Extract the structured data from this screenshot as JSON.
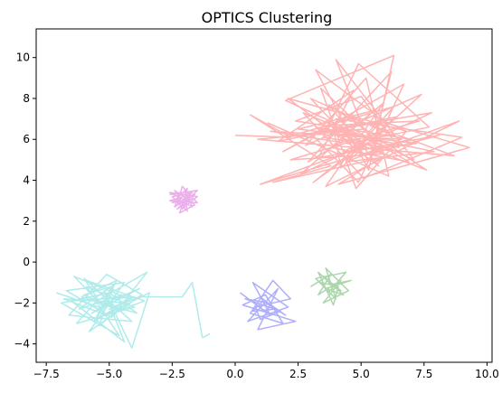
{
  "chart_data": {
    "type": "line",
    "title": "OPTICS Clustering",
    "xlabel": "",
    "ylabel": "",
    "xlim": [
      -7.9,
      10.2
    ],
    "ylim": [
      -4.9,
      11.4
    ],
    "x_ticks": [
      -7.5,
      -5.0,
      -2.5,
      0.0,
      2.5,
      5.0,
      7.5,
      10.0
    ],
    "x_tick_labels": [
      "−7.5",
      "−5.0",
      "−2.5",
      "0.0",
      "2.5",
      "5.0",
      "7.5",
      "10.0"
    ],
    "y_ticks": [
      -4,
      -2,
      0,
      2,
      4,
      6,
      8,
      10
    ],
    "y_tick_labels": [
      "−4",
      "−2",
      "0",
      "2",
      "4",
      "6",
      "8",
      "10"
    ],
    "grid": false,
    "series": [
      {
        "color": "#ffb3b3",
        "points": [
          [
            0.0,
            6.2
          ],
          [
            2.2,
            6.1
          ],
          [
            0.6,
            7.2
          ],
          [
            3.8,
            4.7
          ],
          [
            1.5,
            3.9
          ],
          [
            5.8,
            5.1
          ],
          [
            4.1,
            3.8
          ],
          [
            9.3,
            5.6
          ],
          [
            6.0,
            6.8
          ],
          [
            3.2,
            9.4
          ],
          [
            5.3,
            4.5
          ],
          [
            6.3,
            10.1
          ],
          [
            2.0,
            7.9
          ],
          [
            7.1,
            5.0
          ],
          [
            4.0,
            9.9
          ],
          [
            5.1,
            6.5
          ],
          [
            0.9,
            6.0
          ],
          [
            8.7,
            5.2
          ],
          [
            4.5,
            7.1
          ],
          [
            1.9,
            5.4
          ],
          [
            6.7,
            8.7
          ],
          [
            4.9,
            3.9
          ],
          [
            3.0,
            6.3
          ],
          [
            7.8,
            7.3
          ],
          [
            2.6,
            4.3
          ],
          [
            5.9,
            7.8
          ],
          [
            3.6,
            3.7
          ],
          [
            8.9,
            6.9
          ],
          [
            4.6,
            5.0
          ],
          [
            1.3,
            6.8
          ],
          [
            6.1,
            4.2
          ],
          [
            5.2,
            9.0
          ],
          [
            2.8,
            5.7
          ],
          [
            7.4,
            8.2
          ],
          [
            4.2,
            4.6
          ],
          [
            3.9,
            6.6
          ],
          [
            6.5,
            5.6
          ],
          [
            5.0,
            8.1
          ],
          [
            2.4,
            6.9
          ],
          [
            7.0,
            6.0
          ],
          [
            1.0,
            3.8
          ],
          [
            5.6,
            5.9
          ],
          [
            3.4,
            8.5
          ],
          [
            4.8,
            3.6
          ],
          [
            6.8,
            6.4
          ],
          [
            2.1,
            8.0
          ],
          [
            5.7,
            4.7
          ],
          [
            3.7,
            7.7
          ],
          [
            7.6,
            4.5
          ],
          [
            4.4,
            6.0
          ],
          [
            2.9,
            4.9
          ],
          [
            6.2,
            9.3
          ],
          [
            5.4,
            5.3
          ],
          [
            8.1,
            6.2
          ],
          [
            3.3,
            5.1
          ],
          [
            4.7,
            8.4
          ],
          [
            1.7,
            5.9
          ],
          [
            6.4,
            7.1
          ],
          [
            3.1,
            3.9
          ],
          [
            5.8,
            6.3
          ],
          [
            4.3,
            5.4
          ],
          [
            7.2,
            5.8
          ],
          [
            2.5,
            6.5
          ],
          [
            5.5,
            7.4
          ],
          [
            3.8,
            5.6
          ],
          [
            6.9,
            4.9
          ],
          [
            4.0,
            7.0
          ],
          [
            9.0,
            6.1
          ],
          [
            5.1,
            4.1
          ],
          [
            2.7,
            7.3
          ],
          [
            6.0,
            5.6
          ],
          [
            3.5,
            6.1
          ],
          [
            4.9,
            9.7
          ],
          [
            7.7,
            6.6
          ],
          [
            4.5,
            5.8
          ],
          [
            1.4,
            6.4
          ],
          [
            6.6,
            6.0
          ],
          [
            3.0,
            8.0
          ],
          [
            5.3,
            5.0
          ],
          [
            4.1,
            6.7
          ],
          [
            7.3,
            6.9
          ],
          [
            2.2,
            5.0
          ],
          [
            5.9,
            5.3
          ],
          [
            3.6,
            6.9
          ],
          [
            4.8,
            5.5
          ],
          [
            6.3,
            7.6
          ],
          [
            2.0,
            6.1
          ],
          [
            5.6,
            6.8
          ],
          [
            4.4,
            4.9
          ],
          [
            7.9,
            5.4
          ],
          [
            3.2,
            6.6
          ],
          [
            5.0,
            5.9
          ]
        ]
      },
      {
        "color": "#ebb0eb",
        "points": [
          [
            -2.6,
            3.3
          ],
          [
            -1.5,
            3.5
          ],
          [
            -2.3,
            2.6
          ],
          [
            -1.7,
            3.1
          ],
          [
            -2.5,
            2.9
          ],
          [
            -1.9,
            3.6
          ],
          [
            -2.2,
            2.4
          ],
          [
            -1.6,
            2.8
          ],
          [
            -2.4,
            3.5
          ],
          [
            -2.0,
            2.7
          ],
          [
            -1.8,
            3.3
          ],
          [
            -2.6,
            3.0
          ],
          [
            -1.5,
            2.9
          ],
          [
            -2.1,
            3.7
          ],
          [
            -2.3,
            2.8
          ],
          [
            -1.7,
            3.4
          ],
          [
            -2.5,
            3.2
          ],
          [
            -1.9,
            2.5
          ],
          [
            -2.0,
            3.1
          ],
          [
            -1.6,
            3.3
          ],
          [
            -2.4,
            2.7
          ],
          [
            -2.2,
            3.4
          ],
          [
            -1.8,
            2.9
          ],
          [
            -2.6,
            3.4
          ],
          [
            -1.5,
            3.2
          ],
          [
            -2.1,
            2.6
          ],
          [
            -2.3,
            3.1
          ],
          [
            -1.7,
            2.7
          ],
          [
            -2.0,
            3.5
          ],
          [
            -1.9,
            3.0
          ]
        ]
      },
      {
        "color": "#b0ebeb",
        "points": [
          [
            -7.1,
            -1.5
          ],
          [
            -5.2,
            -2.3
          ],
          [
            -6.0,
            -0.8
          ],
          [
            -4.1,
            -2.9
          ],
          [
            -6.6,
            -2.6
          ],
          [
            -5.1,
            -0.6
          ],
          [
            -3.7,
            -1.6
          ],
          [
            -5.8,
            -3.4
          ],
          [
            -4.4,
            -1.0
          ],
          [
            -6.7,
            -1.4
          ],
          [
            -4.9,
            -2.7
          ],
          [
            -3.5,
            -0.5
          ],
          [
            -5.5,
            -1.9
          ],
          [
            -6.3,
            -3.0
          ],
          [
            -4.0,
            -2.2
          ],
          [
            -5.9,
            -1.2
          ],
          [
            -4.6,
            -3.6
          ],
          [
            -6.9,
            -2.0
          ],
          [
            -5.0,
            -1.5
          ],
          [
            -3.9,
            -2.5
          ],
          [
            -6.1,
            -1.7
          ],
          [
            -4.7,
            -0.9
          ],
          [
            -5.6,
            -2.9
          ],
          [
            -4.2,
            -1.8
          ],
          [
            -6.4,
            -0.7
          ],
          [
            -5.3,
            -2.1
          ],
          [
            -3.8,
            -1.3
          ],
          [
            -5.7,
            -2.5
          ],
          [
            -4.5,
            -1.6
          ],
          [
            -6.2,
            -2.3
          ],
          [
            -4.8,
            -1.1
          ],
          [
            -5.4,
            -3.1
          ],
          [
            -4.3,
            -2.0
          ],
          [
            -6.8,
            -1.8
          ],
          [
            -5.1,
            -2.6
          ],
          [
            -3.6,
            -1.9
          ],
          [
            -5.9,
            -0.9
          ],
          [
            -4.6,
            -2.4
          ],
          [
            -6.0,
            -1.6
          ],
          [
            -4.9,
            -1.2
          ],
          [
            -5.5,
            -2.8
          ],
          [
            -3.4,
            -1.5
          ],
          [
            -4.1,
            -4.2
          ],
          [
            -5.2,
            -1.4
          ],
          [
            -4.4,
            -3.9
          ],
          [
            -6.5,
            -1.9
          ],
          [
            -4.0,
            -1.7
          ],
          [
            -5.0,
            -2.3
          ],
          [
            -3.8,
            -1.7
          ],
          [
            -2.1,
            -1.7
          ],
          [
            -1.7,
            -1.0
          ],
          [
            -1.3,
            -3.7
          ],
          [
            -1.0,
            -3.5
          ]
        ]
      },
      {
        "color": "#aeaefb",
        "points": [
          [
            0.2,
            -1.5
          ],
          [
            1.4,
            -2.6
          ],
          [
            0.7,
            -1.0
          ],
          [
            2.1,
            -2.2
          ],
          [
            0.5,
            -2.9
          ],
          [
            1.7,
            -1.3
          ],
          [
            0.9,
            -3.3
          ],
          [
            2.4,
            -2.9
          ],
          [
            0.3,
            -2.1
          ],
          [
            1.2,
            -1.6
          ],
          [
            1.9,
            -3.0
          ],
          [
            0.6,
            -2.5
          ],
          [
            1.5,
            -0.9
          ],
          [
            2.2,
            -1.8
          ],
          [
            0.8,
            -2.2
          ],
          [
            1.0,
            -2.8
          ],
          [
            1.8,
            -2.4
          ],
          [
            0.4,
            -1.8
          ],
          [
            1.3,
            -2.0
          ],
          [
            2.0,
            -2.6
          ],
          [
            1.1,
            -1.9
          ],
          [
            0.7,
            -2.4
          ],
          [
            1.6,
            -2.3
          ],
          [
            1.0,
            -1.7
          ]
        ]
      },
      {
        "color": "#acd6ac",
        "points": [
          [
            3.0,
            -1.2
          ],
          [
            3.8,
            -0.6
          ],
          [
            3.3,
            -1.6
          ],
          [
            4.2,
            -0.9
          ],
          [
            3.5,
            -2.0
          ],
          [
            4.5,
            -1.4
          ],
          [
            3.6,
            -0.3
          ],
          [
            4.0,
            -1.8
          ],
          [
            3.2,
            -0.8
          ],
          [
            4.4,
            -0.5
          ],
          [
            3.7,
            -1.5
          ],
          [
            3.4,
            -1.0
          ],
          [
            4.1,
            -1.2
          ],
          [
            3.9,
            -2.1
          ],
          [
            3.3,
            -0.5
          ],
          [
            4.3,
            -1.6
          ],
          [
            3.6,
            -1.3
          ],
          [
            4.6,
            -0.9
          ],
          [
            3.8,
            -1.1
          ],
          [
            3.5,
            -0.7
          ],
          [
            4.2,
            -1.4
          ],
          [
            3.7,
            -1.0
          ]
        ]
      }
    ]
  }
}
